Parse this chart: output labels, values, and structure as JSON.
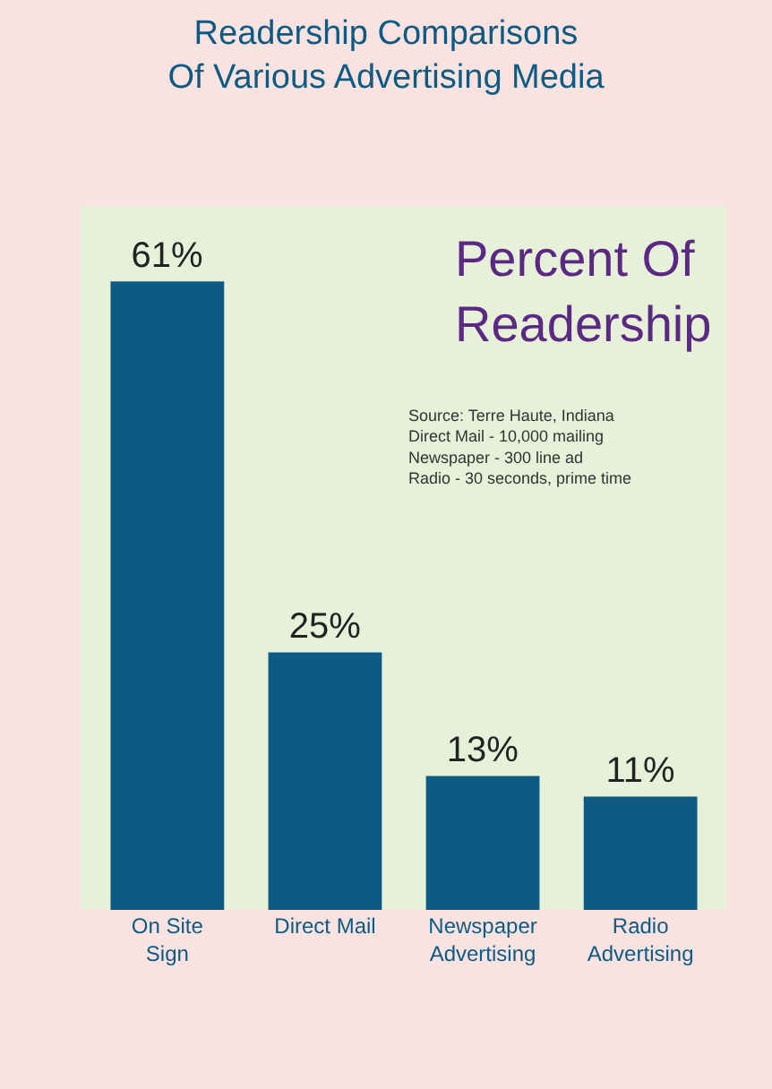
{
  "chart_data": {
    "type": "bar",
    "title": "Readership Comparisons\nOf Various Advertising Media",
    "subtitle": "Percent Of\nReadership",
    "annotations": [
      "Source: Terre Haute, Indiana",
      "Direct Mail - 10,000 mailing",
      "Newspaper - 300 line ad",
      "Radio - 30 seconds, prime time"
    ],
    "categories": [
      "On Site\nSign",
      "Direct Mail",
      "Newspaper\nAdvertising",
      "Radio\nAdvertising"
    ],
    "values": [
      61,
      25,
      13,
      11
    ],
    "value_labels": [
      "61%",
      "25%",
      "13%",
      "11%"
    ],
    "color": "#0f5a82"
  }
}
